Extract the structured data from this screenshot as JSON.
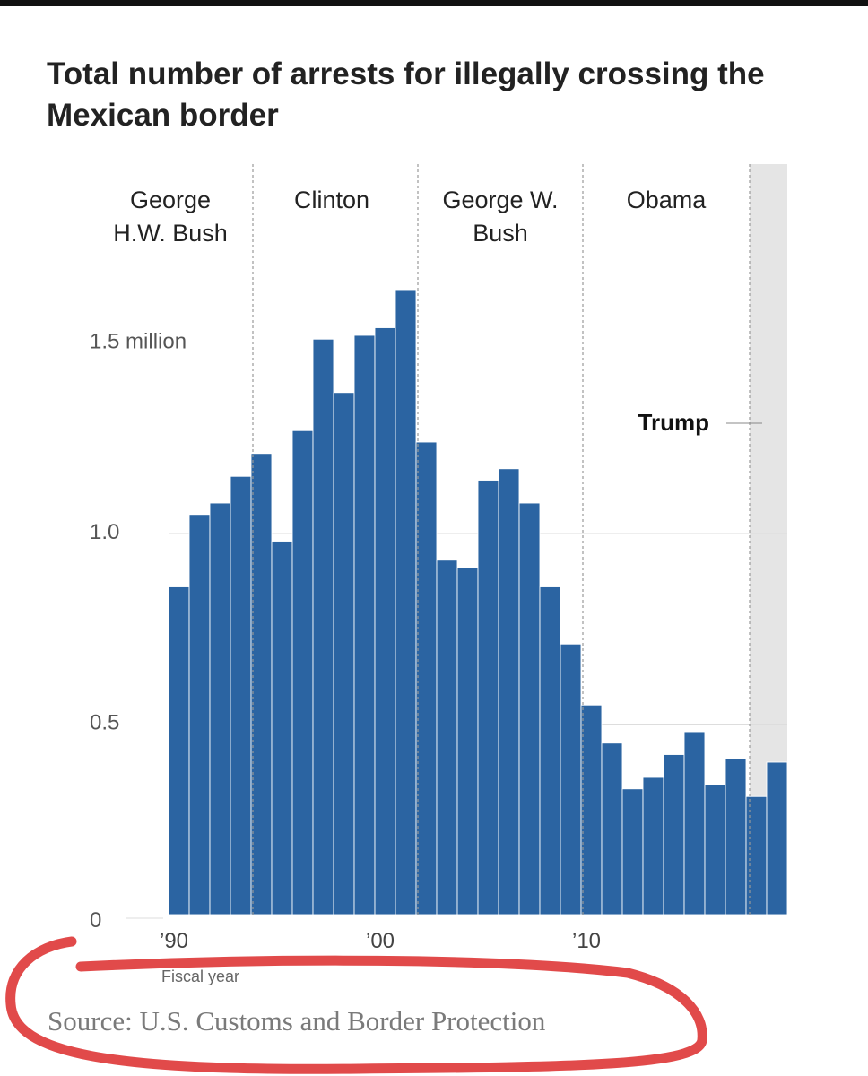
{
  "title": "Total number of arrests for illegally crossing the Mexican border",
  "source": "Source: U.S. Customs and Border Protection",
  "colors": {
    "bar": "#2b64a2",
    "shade": "#e5e5e5",
    "grid": "#dddddd",
    "highlight": "#e14a4a"
  },
  "chart_data": {
    "type": "bar",
    "x": [
      1990,
      1991,
      1992,
      1993,
      1994,
      1995,
      1996,
      1997,
      1998,
      1999,
      2000,
      2001,
      2002,
      2003,
      2004,
      2005,
      2006,
      2007,
      2008,
      2009,
      2010,
      2011,
      2012,
      2013,
      2014,
      2015,
      2016,
      2017,
      2018,
      2019
    ],
    "values": [
      0.86,
      1.05,
      1.08,
      1.15,
      1.21,
      0.98,
      1.27,
      1.51,
      1.37,
      1.52,
      1.54,
      1.64,
      1.24,
      0.93,
      0.91,
      1.14,
      1.17,
      1.08,
      0.86,
      0.71,
      0.55,
      0.45,
      0.33,
      0.36,
      0.42,
      0.48,
      0.34,
      0.41,
      0.31,
      0.4
    ],
    "ylim": [
      0,
      1.6
    ],
    "yticks": [
      {
        "value": 0,
        "label": "0"
      },
      {
        "value": 0.5,
        "label": "0.5"
      },
      {
        "value": 1.0,
        "label": "1.0"
      },
      {
        "value": 1.5,
        "label": "1.5 million"
      }
    ],
    "xticks": [
      {
        "value": 1990,
        "label": "’90"
      },
      {
        "value": 2000,
        "label": "’00"
      },
      {
        "value": 2010,
        "label": "’10"
      }
    ],
    "xlabel": "Fiscal year",
    "shaded_start_year": 2018,
    "presidents": [
      {
        "lines": [
          "George",
          "H.W. Bush"
        ]
      },
      {
        "lines": [
          "Clinton"
        ]
      },
      {
        "lines": [
          "George W.",
          "Bush"
        ]
      },
      {
        "lines": [
          "Obama"
        ]
      },
      {
        "lines": [
          "Trump"
        ]
      }
    ],
    "term_boundaries": [
      1994,
      2002,
      2010,
      2018
    ],
    "grid": true
  }
}
